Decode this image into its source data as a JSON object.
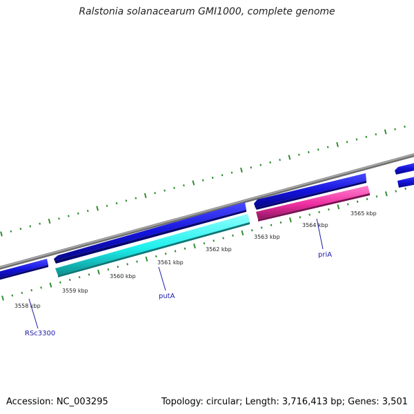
{
  "title": "Ralstonia solanacearum GMI1000, complete genome",
  "footer": {
    "accession": "Accession: NC_003295",
    "summary": "Topology: circular; Length: 3,716,413 bp; Genes: 3,501"
  },
  "colors": {
    "backbone": "#8a8a8a",
    "forward_gene": "#1414dd",
    "reverse_gene_cyan": "#1ef0ee",
    "reverse_gene_magenta": "#ee2ea0",
    "tick": "#2e8b2e",
    "label": "#1a1aa8"
  },
  "scale_labels": [
    {
      "kbp": 3558,
      "text": "3558 kbp"
    },
    {
      "kbp": 3559,
      "text": "3559 kbp"
    },
    {
      "kbp": 3560,
      "text": "3560 kbp"
    },
    {
      "kbp": 3561,
      "text": "3561 kbp"
    },
    {
      "kbp": 3562,
      "text": "3562 kbp"
    },
    {
      "kbp": 3563,
      "text": "3563 kbp"
    },
    {
      "kbp": 3564,
      "text": "3564 kbp"
    },
    {
      "kbp": 3565,
      "text": "3565 kbp"
    }
  ],
  "gene_labels": [
    {
      "name": "RSc3300"
    },
    {
      "name": "putA"
    },
    {
      "name": "priA"
    }
  ]
}
